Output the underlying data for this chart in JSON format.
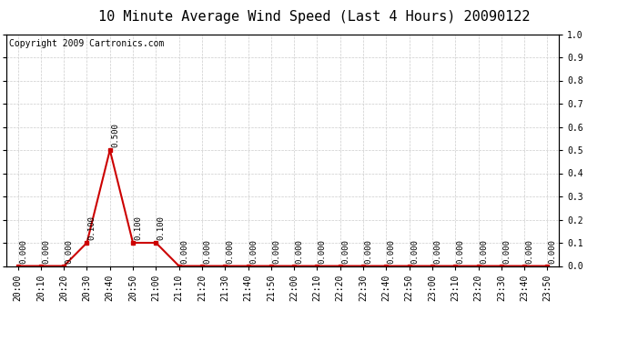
{
  "title": "10 Minute Average Wind Speed (Last 4 Hours) 20090122",
  "copyright": "Copyright 2009 Cartronics.com",
  "x_labels": [
    "20:00",
    "20:10",
    "20:20",
    "20:30",
    "20:40",
    "20:50",
    "21:00",
    "21:10",
    "21:20",
    "21:30",
    "21:40",
    "21:50",
    "22:00",
    "22:10",
    "22:20",
    "22:30",
    "22:40",
    "22:50",
    "23:00",
    "23:10",
    "23:20",
    "23:30",
    "23:40",
    "23:50"
  ],
  "values": [
    0.0,
    0.0,
    0.0,
    0.1,
    0.5,
    0.1,
    0.1,
    0.0,
    0.0,
    0.0,
    0.0,
    0.0,
    0.0,
    0.0,
    0.0,
    0.0,
    0.0,
    0.0,
    0.0,
    0.0,
    0.0,
    0.0,
    0.0,
    0.0
  ],
  "ylim": [
    0.0,
    1.0
  ],
  "yticks": [
    0.0,
    0.1,
    0.2,
    0.3,
    0.4,
    0.5,
    0.6,
    0.7,
    0.8,
    0.9,
    1.0
  ],
  "line_color": "#cc0000",
  "marker_color": "#cc0000",
  "bg_color": "#ffffff",
  "grid_color": "#cccccc",
  "title_fontsize": 11,
  "copyright_fontsize": 7,
  "tick_fontsize": 7,
  "annotation_fontsize": 6.5
}
